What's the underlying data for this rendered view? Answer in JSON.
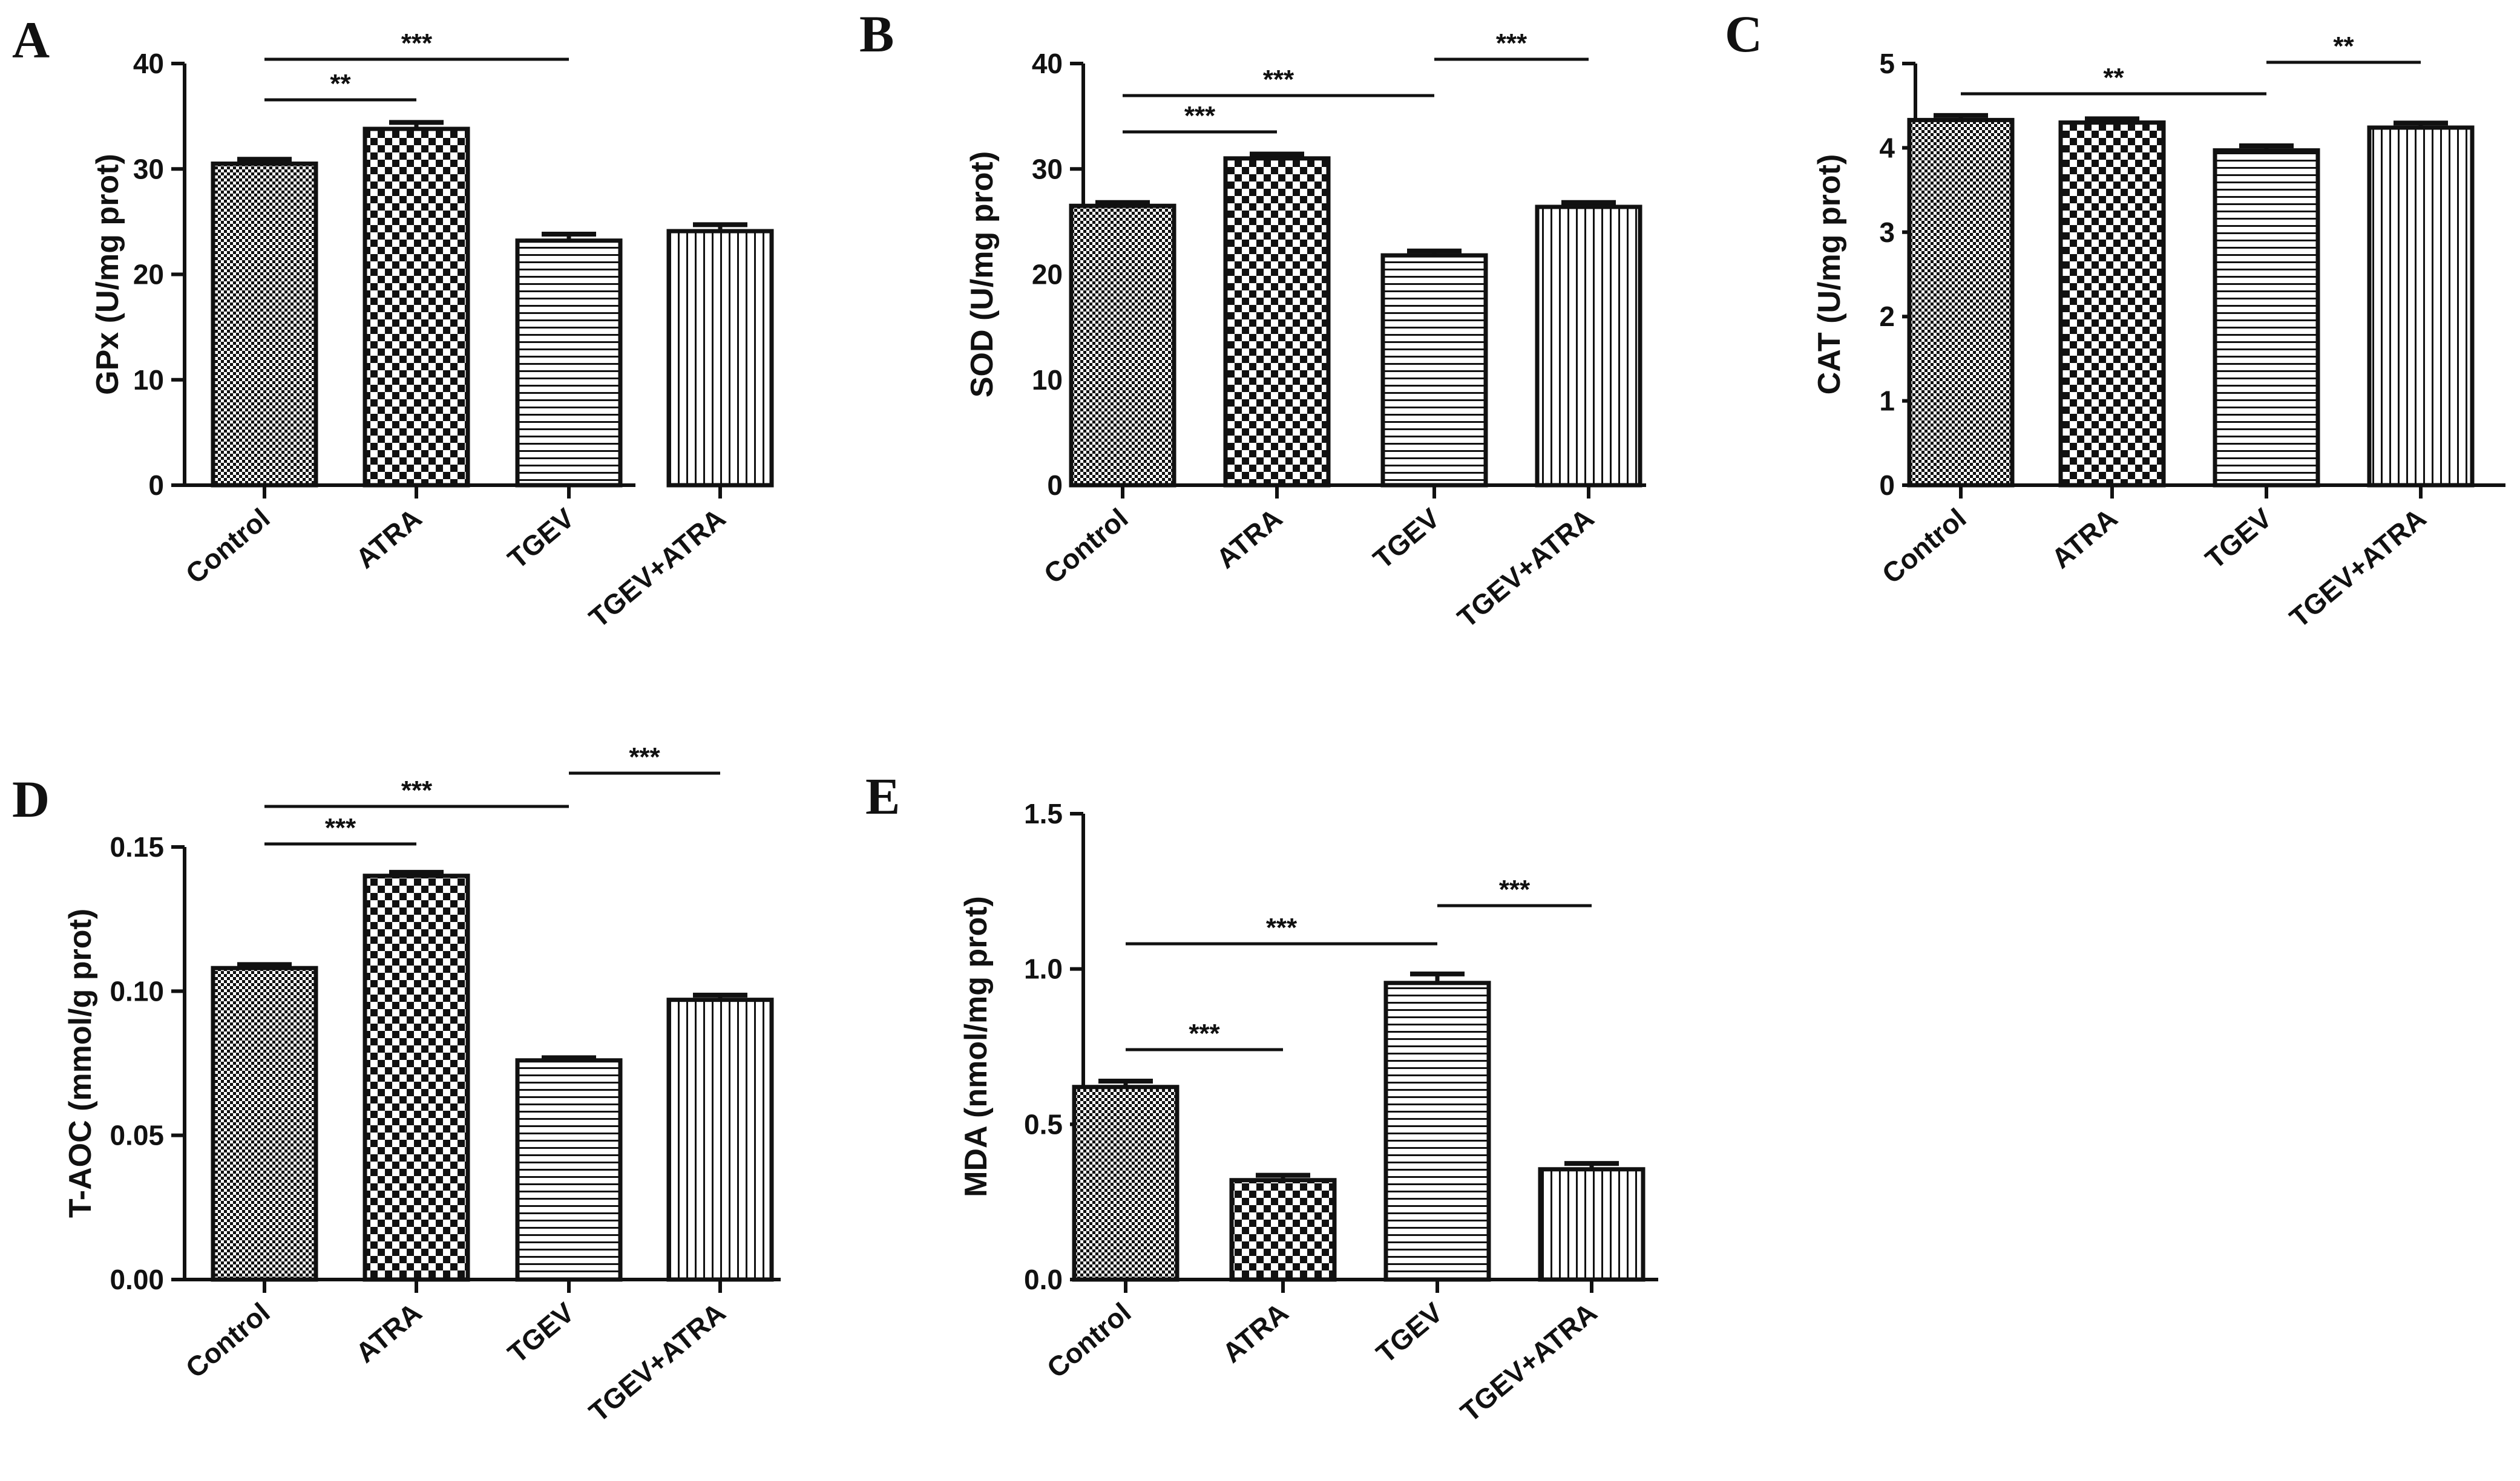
{
  "chart_data": [
    {
      "panel": "A",
      "type": "bar",
      "ylabel": "GPx (U/mg prot)",
      "ylim": [
        0,
        40
      ],
      "yticks": [
        "0",
        "10",
        "20",
        "30",
        "40"
      ],
      "categories": [
        "Control",
        "ATRA",
        "TGEV",
        "TGEV+ATRA"
      ],
      "patterns": [
        "pat-small-check",
        "pat-big-check",
        "pat-hlines",
        "pat-vlines"
      ],
      "values": [
        30.5,
        33.8,
        23.2,
        24.1
      ],
      "errors": [
        0.3,
        0.5,
        0.5,
        0.5
      ],
      "significance": [
        {
          "from": 0,
          "to": 1,
          "label": "**"
        },
        {
          "from": 0,
          "to": 2,
          "label": "***"
        }
      ]
    },
    {
      "panel": "B",
      "type": "bar",
      "ylabel": "SOD (U/mg prot)",
      "ylim": [
        0,
        40
      ],
      "yticks": [
        "0",
        "10",
        "20",
        "30",
        "40"
      ],
      "categories": [
        "Control",
        "ATRA",
        "TGEV",
        "TGEV+ATRA"
      ],
      "patterns": [
        "pat-small-check",
        "pat-big-check",
        "pat-hlines",
        "pat-vlines"
      ],
      "values": [
        26.5,
        31.0,
        21.8,
        26.4
      ],
      "errors": [
        0.2,
        0.3,
        0.3,
        0.3
      ],
      "significance": [
        {
          "from": 0,
          "to": 1,
          "label": "***"
        },
        {
          "from": 0,
          "to": 2,
          "label": "***"
        },
        {
          "from": 2,
          "to": 3,
          "label": "***"
        }
      ]
    },
    {
      "panel": "C",
      "type": "bar",
      "ylabel": "CAT (U/mg prot)",
      "ylim": [
        0,
        5
      ],
      "yticks": [
        "0",
        "1",
        "2",
        "3",
        "4",
        "5"
      ],
      "categories": [
        "Control",
        "ATRA",
        "TGEV",
        "TGEV+ATRA"
      ],
      "patterns": [
        "pat-small-check",
        "pat-big-check",
        "pat-hlines",
        "pat-vlines"
      ],
      "values": [
        4.33,
        4.3,
        3.97,
        4.24
      ],
      "errors": [
        0.04,
        0.03,
        0.04,
        0.04
      ],
      "significance": [
        {
          "from": 0,
          "to": 2,
          "label": "**"
        },
        {
          "from": 2,
          "to": 3,
          "label": "**"
        }
      ]
    },
    {
      "panel": "D",
      "type": "bar",
      "ylabel": "T-AOC (mmol/g prot)",
      "ylim": [
        0,
        0.15
      ],
      "yticks": [
        "0.00",
        "0.05",
        "0.10",
        "0.15"
      ],
      "categories": [
        "Control",
        "ATRA",
        "TGEV",
        "TGEV+ATRA"
      ],
      "patterns": [
        "pat-small-check",
        "pat-big-check",
        "pat-hlines",
        "pat-vlines"
      ],
      "values": [
        0.108,
        0.14,
        0.076,
        0.097
      ],
      "errors": [
        0.0008,
        0.0008,
        0.0005,
        0.0012
      ],
      "significance": [
        {
          "from": 0,
          "to": 1,
          "label": "***"
        },
        {
          "from": 0,
          "to": 2,
          "label": "***"
        },
        {
          "from": 2,
          "to": 3,
          "label": "***"
        }
      ]
    },
    {
      "panel": "E",
      "type": "bar",
      "ylabel": "MDA (nmol/mg prot)",
      "ylim": [
        0,
        1.5
      ],
      "yticks": [
        "0.0",
        "0.5",
        "1.0",
        "1.5"
      ],
      "categories": [
        "Control",
        "ATRA",
        "TGEV",
        "TGEV+ATRA"
      ],
      "patterns": [
        "pat-small-check",
        "pat-big-check",
        "pat-hlines",
        "pat-vlines"
      ],
      "values": [
        0.62,
        0.32,
        0.955,
        0.355
      ],
      "errors": [
        0.015,
        0.012,
        0.025,
        0.015
      ],
      "significance": [
        {
          "from": 0,
          "to": 1,
          "label": "***"
        },
        {
          "from": 0,
          "to": 2,
          "label": "***"
        },
        {
          "from": 2,
          "to": 3,
          "label": "***"
        }
      ]
    }
  ]
}
